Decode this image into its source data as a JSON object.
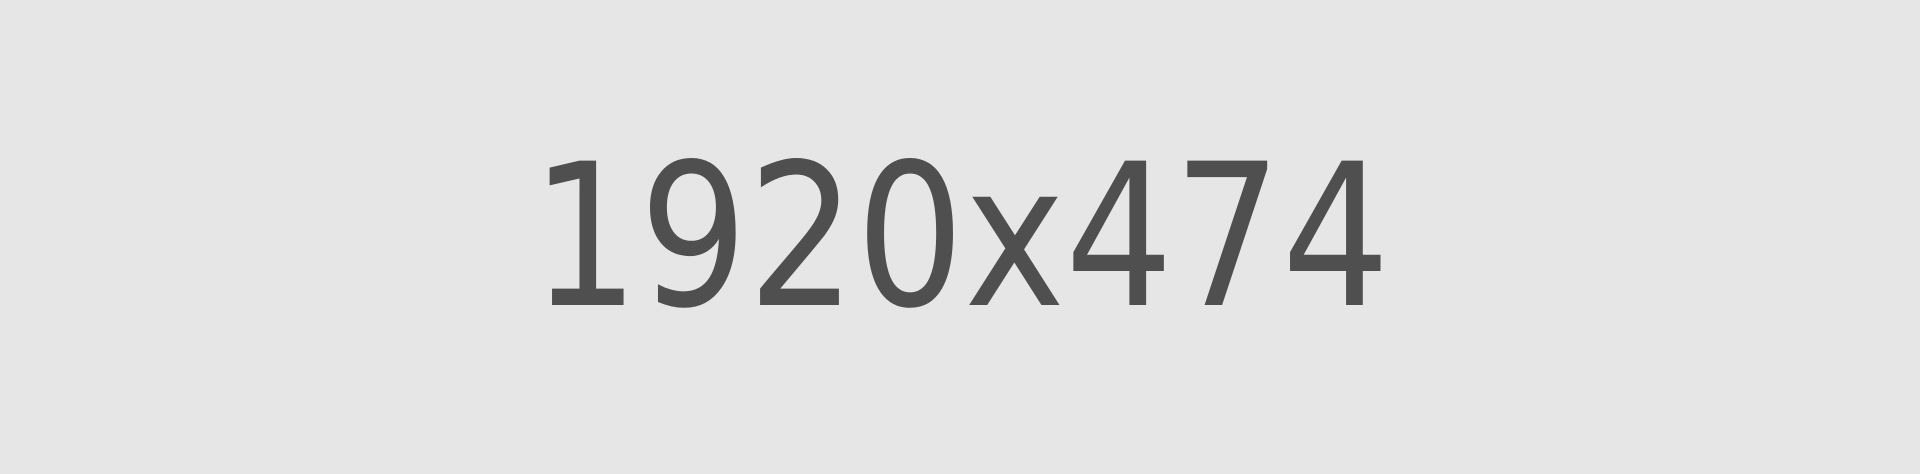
{
  "placeholder": {
    "label": "1920x474",
    "background_color": "#e6e6e6",
    "text_color": "#4f4f4f"
  }
}
